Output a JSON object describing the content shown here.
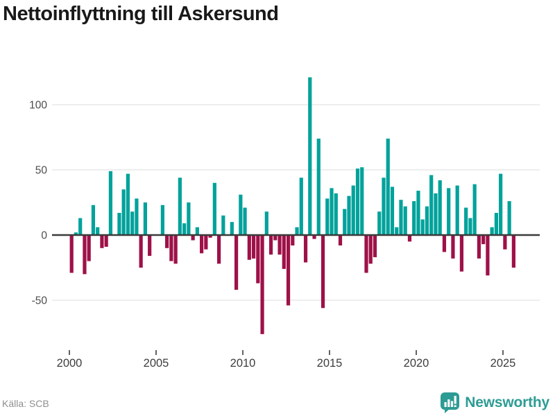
{
  "footer": {
    "source": "Källa: SCB",
    "brand": "Newsworthy",
    "brand_color": "#2d9c94"
  },
  "chart_data": {
    "type": "bar",
    "title": "Nettoinflyttning till Askersund",
    "x_unit": "quarter",
    "x_start": "2000-Q1",
    "x_end": "2025-Q3",
    "values": [
      -29,
      2,
      13,
      -30,
      -20,
      23,
      6,
      -10,
      -9,
      49,
      0,
      17,
      35,
      47,
      18,
      28,
      -25,
      25,
      -16,
      0,
      0,
      23,
      -10,
      -20,
      -22,
      44,
      9,
      25,
      -4,
      6,
      -14,
      -11,
      -2,
      40,
      -22,
      15,
      0,
      10,
      -42,
      31,
      21,
      -19,
      -18,
      -37,
      -76,
      18,
      -15,
      -4,
      -15,
      -26,
      -54,
      -8,
      6,
      44,
      -21,
      121,
      -3,
      74,
      -56,
      28,
      36,
      32,
      -8,
      20,
      30,
      38,
      51,
      52,
      -29,
      -22,
      -17,
      18,
      44,
      74,
      37,
      6,
      27,
      22,
      -5,
      26,
      34,
      12,
      22,
      46,
      32,
      42,
      -13,
      36,
      -18,
      38,
      -28,
      21,
      13,
      39,
      -18,
      -7,
      -31,
      6,
      17,
      47,
      -11,
      26,
      -25
    ],
    "xticks": [
      "2000",
      "2005",
      "2010",
      "2015",
      "2020",
      "2025"
    ],
    "yticks": [
      100,
      50,
      0,
      -50
    ],
    "ylim": [
      -80,
      125
    ],
    "grid": true,
    "legend": false,
    "bar_colors": {
      "positive": "#00a29b",
      "negative": "#9e1148"
    }
  }
}
